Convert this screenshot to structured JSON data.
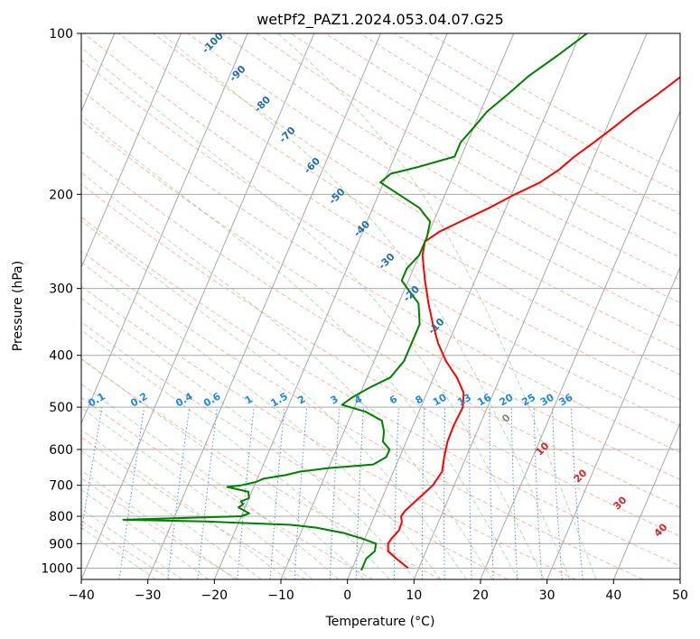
{
  "chart_data": {
    "type": "line",
    "title": "wetPf2_PAZ1.2024.053.04.07.G25",
    "xlabel": "Temperature (°C)",
    "ylabel": "Pressure (hPa)",
    "xlim": [
      -40,
      50
    ],
    "ylim": [
      1050,
      100
    ],
    "y_scale": "log",
    "grid": true,
    "x_ticks": [
      "−40",
      "−30",
      "−20",
      "−10",
      "0",
      "10",
      "20",
      "30",
      "40",
      "50"
    ],
    "y_ticks": [
      "1000",
      "900",
      "800",
      "700",
      "600",
      "500",
      "400",
      "300",
      "200",
      "100"
    ],
    "series": [
      {
        "color": "#ff0000",
        "p": [
          1000,
          960,
          930,
          900,
          880,
          850,
          820,
          800,
          780,
          740,
          700,
          660,
          620,
          580,
          540,
          500,
          470,
          440,
          410,
          380,
          350,
          320,
          290,
          260,
          245,
          235,
          225,
          212,
          200,
          190,
          180,
          170,
          160,
          150,
          140,
          130,
          120,
          110,
          100
        ],
        "temp": [
          8.4,
          6.0,
          4.3,
          3.8,
          4.0,
          4.6,
          4.5,
          4.0,
          4.3,
          5.5,
          6.8,
          7.3,
          6.7,
          6.2,
          6.1,
          6.3,
          5.5,
          3.5,
          0.8,
          -1.5,
          -3.5,
          -5.5,
          -7.5,
          -9.5,
          -10.0,
          -8.5,
          -6.0,
          -2.5,
          0.5,
          3.5,
          5.5,
          7.0,
          9.0,
          11.0,
          13.0,
          15.5,
          18.0,
          21.0,
          24.0
        ]
      },
      {
        "color": "#008000",
        "p": [
          1010,
          960,
          930,
          900,
          880,
          860,
          840,
          830,
          818,
          812,
          800,
          790,
          770,
          760,
          750,
          740,
          720,
          705,
          700,
          690,
          680,
          670,
          660,
          650,
          640,
          620,
          600,
          580,
          555,
          530,
          510,
          495,
          480,
          460,
          440,
          410,
          380,
          350,
          320,
          290,
          275,
          260,
          240,
          225,
          212,
          200,
          190,
          183,
          178,
          170,
          160,
          150,
          140,
          130,
          120,
          110,
          100
        ],
        "temp": [
          1.5,
          1.5,
          2.3,
          2.0,
          -0.5,
          -3.5,
          -8.0,
          -12.0,
          -25.0,
          -37.5,
          -20.0,
          -19.0,
          -21.0,
          -20.5,
          -21.0,
          -20.0,
          -20.5,
          -24.0,
          -22.0,
          -20.0,
          -19.0,
          -16.0,
          -14.0,
          -10.0,
          -3.5,
          -2.0,
          -2.0,
          -3.5,
          -4.0,
          -5.0,
          -8.0,
          -12.0,
          -11.0,
          -9.0,
          -6.5,
          -5.5,
          -5.5,
          -5.5,
          -7.0,
          -11.0,
          -11.0,
          -10.0,
          -10.0,
          -10.5,
          -13.0,
          -17.0,
          -20.5,
          -19.5,
          -16.0,
          -11.0,
          -11.0,
          -10.0,
          -9.0,
          -7.0,
          -5.0,
          -2.0,
          1.0
        ]
      }
    ],
    "annotations": {
      "dry_adiabat_labels": [
        "-100",
        "-90",
        "-80",
        "-70",
        "-60",
        "-50",
        "-40",
        "-30",
        "-20",
        "-10"
      ],
      "mixing_ratio_labels": [
        "0.1",
        "0.2",
        "0.4",
        "0.6",
        "1",
        "1.5",
        "2",
        "3",
        "4",
        "6",
        "8",
        "10",
        "13",
        "16",
        "20",
        "25",
        "30",
        "36"
      ],
      "moist_adiabat_labels": [
        "0",
        "10",
        "20",
        "30",
        "40"
      ]
    },
    "colors": {
      "isotherm": "#aaaaaa",
      "isobar": "#aaaaaa",
      "dry_adiabat": "#f08060",
      "moist_adiabat": "#70c070",
      "mixing_ratio": "#1e88e5",
      "dry_label": "#1f6fb0",
      "mix_label": "#1e88e5",
      "moist_label": "#d62728",
      "zero_label": "#888888"
    }
  }
}
